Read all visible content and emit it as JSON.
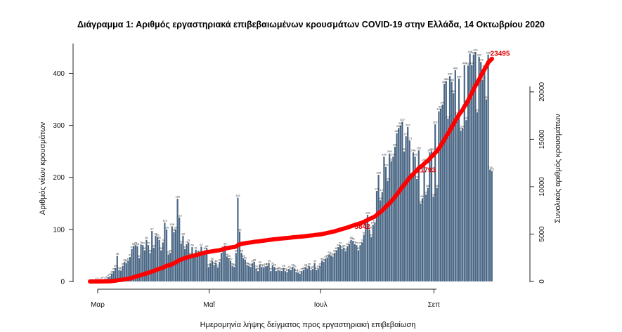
{
  "chart_data": {
    "type": "bar+line",
    "title": "Διάγραμμα 1: Αριθμός εργαστηριακά επιβεβαιωμένων κρουσμάτων COVID-19 στην Ελλάδα, 14 Οκτωβρίου 2020",
    "xlabel": "Ημερομηνία λήψης δείγματος προς εργαστηριακή επιβεβαίωση",
    "ylabel_left": "Αριθμός νέων κρουσμάτων",
    "ylabel_right": "Συνολικός αριθμός κρουσμάτων",
    "x_ticks": [
      "Μαρ",
      "Μαΐ",
      "Ιουλ",
      "Σεπ"
    ],
    "x_tick_day_index": [
      0,
      61,
      122,
      184
    ],
    "y_left_ticks": [
      0,
      100,
      200,
      300,
      400
    ],
    "y_left_range": [
      0,
      460
    ],
    "y_right_ticks": [
      0,
      5000,
      10000,
      15000,
      20000
    ],
    "y_right_range": [
      0,
      25250
    ],
    "start_date": "2020-02-26",
    "daily_new_cases": [
      0,
      0,
      0,
      1,
      2,
      1,
      3,
      4,
      2,
      5,
      8,
      10,
      15,
      20,
      26,
      49,
      22,
      21,
      30,
      38,
      35,
      40,
      47,
      62,
      68,
      70,
      68,
      45,
      71,
      70,
      60,
      80,
      70,
      55,
      97,
      65,
      88,
      85,
      80,
      60,
      75,
      113,
      100,
      52,
      55,
      106,
      95,
      100,
      159,
      123,
      73,
      88,
      62,
      72,
      75,
      50,
      66,
      48,
      61,
      54,
      53,
      67,
      50,
      60,
      64,
      28,
      35,
      40,
      32,
      36,
      27,
      38,
      55,
      62,
      69,
      48,
      45,
      40,
      30,
      28,
      55,
      161,
      96,
      55,
      45,
      42,
      32,
      30,
      28,
      35,
      38,
      25,
      20,
      33,
      28,
      27,
      29,
      30,
      35,
      20,
      31,
      28,
      20,
      22,
      21,
      20,
      26,
      20,
      18,
      24,
      22,
      28,
      25,
      18,
      17,
      15,
      20,
      22,
      28,
      25,
      30,
      22,
      24,
      35,
      22,
      25,
      30,
      40,
      38,
      44,
      46,
      52,
      50,
      48,
      55,
      60,
      66,
      70,
      62,
      65,
      58,
      68,
      72,
      80,
      78,
      72,
      70,
      60,
      70,
      75,
      90,
      115,
      128,
      100,
      85,
      109,
      112,
      174,
      205,
      156,
      172,
      240,
      220,
      193,
      246,
      231,
      240,
      259,
      285,
      295,
      300,
      307,
      250,
      279,
      297,
      271,
      200,
      248,
      240,
      197,
      252,
      150,
      160,
      230,
      167,
      180,
      248,
      250,
      163,
      302,
      180,
      327,
      332,
      340,
      380,
      385,
      313,
      395,
      384,
      362,
      406,
      320,
      390,
      290,
      294,
      416,
      310,
      415,
      438,
      416,
      436,
      441,
      325,
      432,
      422,
      388,
      410,
      350,
      436,
      215,
      212
    ],
    "cumulative_markers": [
      {
        "day_index": 154,
        "value": 5842,
        "label": "5842"
      },
      {
        "day_index": 188,
        "value": 11793,
        "label": "11793"
      },
      {
        "day_index": 226,
        "value": 23495,
        "label": "23495"
      }
    ],
    "bar_color": "#4a6785",
    "line_color": "#ff0000"
  }
}
